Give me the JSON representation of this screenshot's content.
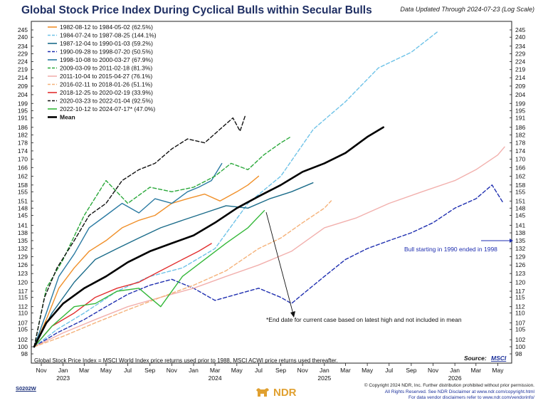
{
  "chart_data": {
    "type": "line",
    "title": "Global Stock Price Index During Cyclical Bulls within Secular Bulls",
    "subtitle": "Data Updated Through 2024-07-23 (Log Scale)",
    "y_scale": "log",
    "ylim": [
      98,
      248
    ],
    "y_ticks": [
      98,
      100,
      102,
      105,
      107,
      110,
      112,
      115,
      117,
      120,
      123,
      126,
      129,
      132,
      135,
      138,
      141,
      145,
      148,
      151,
      155,
      158,
      162,
      166,
      170,
      174,
      178,
      182,
      186,
      191,
      195,
      199,
      204,
      209,
      214,
      219,
      224,
      229,
      234,
      240,
      245
    ],
    "y_tick_labels": [
      "98",
      "100",
      "102",
      "105",
      "107",
      "110",
      "112",
      "115",
      "117",
      "120",
      "123",
      "126",
      "129",
      "132",
      "135",
      "138",
      "141",
      "145",
      "148",
      "151",
      "155",
      "158",
      "162",
      "166",
      "170",
      "174",
      "178",
      "182",
      "186",
      "191",
      "195",
      "199",
      "204",
      "209",
      "214",
      "219",
      "224",
      "229",
      "234",
      "240",
      "245"
    ],
    "x_range": [
      "2022-10-12",
      "2026-06-01"
    ],
    "x_ticks": [
      {
        "date": "2022-11-01",
        "label": "Nov"
      },
      {
        "date": "2023-01-01",
        "label": "Jan"
      },
      {
        "date": "2023-03-01",
        "label": "Mar"
      },
      {
        "date": "2023-05-01",
        "label": "May"
      },
      {
        "date": "2023-07-01",
        "label": "Jul"
      },
      {
        "date": "2023-09-01",
        "label": "Sep"
      },
      {
        "date": "2023-11-01",
        "label": "Nov"
      },
      {
        "date": "2024-01-01",
        "label": "Jan"
      },
      {
        "date": "2024-03-01",
        "label": "Mar"
      },
      {
        "date": "2024-05-01",
        "label": "May"
      },
      {
        "date": "2024-07-01",
        "label": "Jul"
      },
      {
        "date": "2024-09-01",
        "label": "Sep"
      },
      {
        "date": "2024-11-01",
        "label": "Nov"
      },
      {
        "date": "2025-01-01",
        "label": "Jan"
      },
      {
        "date": "2025-03-01",
        "label": "Mar"
      },
      {
        "date": "2025-05-01",
        "label": "May"
      },
      {
        "date": "2025-07-01",
        "label": "Jul"
      },
      {
        "date": "2025-09-01",
        "label": "Sep"
      },
      {
        "date": "2025-11-01",
        "label": "Nov"
      },
      {
        "date": "2026-01-01",
        "label": "Jan"
      },
      {
        "date": "2026-03-01",
        "label": "Mar"
      },
      {
        "date": "2026-05-01",
        "label": "May"
      }
    ],
    "year_labels": [
      {
        "date": "2023-01-01",
        "label": "2023"
      },
      {
        "date": "2024-03-01",
        "label": "2024"
      },
      {
        "date": "2025-01-01",
        "label": "2025"
      },
      {
        "date": "2026-01-01",
        "label": "2026"
      }
    ],
    "grid": false,
    "legend_position": "top-left",
    "series": [
      {
        "name": "1982-08-12 to 1984-05-02 (62.5%)",
        "color": "#f0902a",
        "dash": "solid",
        "x": [
          "2022-10-12",
          "2022-11-15",
          "2022-12-20",
          "2023-02-01",
          "2023-03-15",
          "2023-05-01",
          "2023-06-15",
          "2023-08-01",
          "2023-09-15",
          "2023-11-01",
          "2023-12-15",
          "2024-02-01",
          "2024-03-15",
          "2024-05-01",
          "2024-06-01",
          "2024-07-01"
        ],
        "y": [
          100,
          108,
          118,
          125,
          131,
          135,
          140,
          143,
          145,
          150,
          152,
          154,
          151,
          155,
          158,
          162
        ]
      },
      {
        "name": "1984-07-24 to 1987-08-25 (144.1%)",
        "color": "#6fc3e8",
        "dash": "dash",
        "x": [
          "2022-10-12",
          "2022-12-15",
          "2023-03-01",
          "2023-06-01",
          "2023-09-01",
          "2023-12-01",
          "2024-03-01",
          "2024-06-01",
          "2024-09-01",
          "2024-12-01",
          "2025-03-01",
          "2025-06-01",
          "2025-09-01",
          "2025-11-15"
        ],
        "y": [
          100,
          105,
          110,
          117,
          122,
          125,
          132,
          150,
          162,
          185,
          200,
          220,
          230,
          244
        ]
      },
      {
        "name": "1987-12-04 to 1990-01-03 (59.2%)",
        "color": "#1b6c8a",
        "dash": "solid",
        "x": [
          "2022-10-12",
          "2022-12-01",
          "2023-02-01",
          "2023-04-01",
          "2023-06-01",
          "2023-08-01",
          "2023-10-01",
          "2023-12-01",
          "2024-02-01",
          "2024-04-01",
          "2024-06-01",
          "2024-08-01",
          "2024-10-01",
          "2024-11-30"
        ],
        "y": [
          100,
          110,
          120,
          128,
          132,
          136,
          140,
          143,
          146,
          149,
          148,
          152,
          155,
          159
        ]
      },
      {
        "name": "1990-09-28 to 1998-07-20 (50.5%)",
        "color": "#1f2fb0",
        "dash": "dash",
        "x": [
          "2022-10-12",
          "2022-12-15",
          "2023-03-01",
          "2023-05-01",
          "2023-07-01",
          "2023-09-01",
          "2023-11-01",
          "2024-01-01",
          "2024-03-01",
          "2024-05-01",
          "2024-07-01",
          "2024-09-01",
          "2024-10-01",
          "2024-11-01",
          "2025-01-01",
          "2025-03-01",
          "2025-05-01",
          "2025-07-01",
          "2025-09-01",
          "2025-11-01",
          "2026-01-01",
          "2026-03-01",
          "2026-04-15",
          "2026-05-15"
        ],
        "y": [
          100,
          104,
          108,
          112,
          116,
          119,
          121,
          118,
          114,
          116,
          118,
          115,
          113,
          116,
          122,
          128,
          132,
          135,
          138,
          142,
          148,
          152,
          158,
          150.5
        ]
      },
      {
        "name": "1998-10-08 to 2000-03-27 (67.9%)",
        "color": "#2a7aa2",
        "dash": "solid",
        "x": [
          "2022-10-12",
          "2022-11-15",
          "2022-12-20",
          "2023-02-01",
          "2023-03-15",
          "2023-05-01",
          "2023-06-15",
          "2023-08-01",
          "2023-09-15",
          "2023-11-01",
          "2023-12-15",
          "2024-01-15",
          "2024-02-20",
          "2024-03-20"
        ],
        "y": [
          100,
          110,
          122,
          130,
          140,
          145,
          150,
          146,
          152,
          150,
          155,
          157,
          160,
          167.9
        ]
      },
      {
        "name": "2009-03-09 to 2011-02-18 (81.3%)",
        "color": "#2aa83a",
        "dash": "dash",
        "x": [
          "2022-10-12",
          "2022-11-15",
          "2023-01-01",
          "2023-03-01",
          "2023-05-01",
          "2023-07-01",
          "2023-09-01",
          "2023-11-01",
          "2024-01-01",
          "2024-03-01",
          "2024-04-15",
          "2024-06-01",
          "2024-07-15",
          "2024-09-01",
          "2024-10-01"
        ],
        "y": [
          100,
          118,
          128,
          145,
          160,
          150,
          157,
          155,
          157,
          162,
          168,
          165,
          172,
          178,
          181.3
        ]
      },
      {
        "name": "2011-10-04 to 2015-04-27 (76.1%)",
        "color": "#f2b0ad",
        "dash": "solid",
        "x": [
          "2022-10-12",
          "2023-01-01",
          "2023-04-01",
          "2023-07-01",
          "2023-10-01",
          "2024-01-01",
          "2024-04-01",
          "2024-07-01",
          "2024-10-01",
          "2025-01-01",
          "2025-04-01",
          "2025-07-01",
          "2025-10-01",
          "2026-01-01",
          "2026-03-01",
          "2026-05-01",
          "2026-05-20"
        ],
        "y": [
          100,
          104,
          108,
          112,
          115,
          118,
          122,
          126,
          131,
          140,
          144,
          150,
          155,
          160,
          165,
          172,
          176
        ]
      },
      {
        "name": "2016-02-11 to 2018-01-26 (51.1%)",
        "color": "#f5b27a",
        "dash": "dash",
        "x": [
          "2022-10-12",
          "2023-01-01",
          "2023-04-01",
          "2023-07-01",
          "2023-10-01",
          "2024-01-01",
          "2024-04-01",
          "2024-07-01",
          "2024-09-01",
          "2024-11-01",
          "2025-01-01",
          "2025-01-20"
        ],
        "y": [
          100,
          103,
          107,
          111,
          115,
          119,
          124,
          132,
          136,
          142,
          148,
          151.1
        ]
      },
      {
        "name": "2018-12-25 to 2020-02-19 (33.9%)",
        "color": "#e23030",
        "dash": "solid",
        "x": [
          "2022-10-12",
          "2022-12-01",
          "2023-02-01",
          "2023-04-01",
          "2023-06-01",
          "2023-08-01",
          "2023-10-01",
          "2023-12-01",
          "2024-01-15",
          "2024-02-20"
        ],
        "y": [
          100,
          106,
          110,
          115,
          118,
          120,
          124,
          128,
          131,
          133.9
        ]
      },
      {
        "name": "2020-03-23 to 2022-01-04 (92.5%)",
        "color": "#111111",
        "dash": "dash",
        "x": [
          "2022-10-12",
          "2022-11-10",
          "2022-12-15",
          "2023-02-01",
          "2023-03-15",
          "2023-05-01",
          "2023-06-15",
          "2023-08-01",
          "2023-09-15",
          "2023-11-01",
          "2023-12-15",
          "2024-02-01",
          "2024-03-15",
          "2024-04-20",
          "2024-05-10",
          "2024-05-25"
        ],
        "y": [
          100,
          115,
          125,
          135,
          145,
          150,
          160,
          165,
          168,
          175,
          180,
          178,
          185,
          191,
          184,
          192.5
        ]
      },
      {
        "name": "2022-10-12 to 2024-07-17* (47.0%)",
        "color": "#35b83a",
        "dash": "solid",
        "x": [
          "2022-10-12",
          "2022-12-01",
          "2023-02-01",
          "2023-04-01",
          "2023-06-01",
          "2023-08-01",
          "2023-10-01",
          "2023-12-01",
          "2024-02-01",
          "2024-04-01",
          "2024-06-01",
          "2024-07-17"
        ],
        "y": [
          100,
          106,
          112,
          113,
          117,
          118,
          112,
          122,
          128,
          134,
          140,
          147
        ]
      },
      {
        "name": "Mean",
        "color": "#000000",
        "dash": "solid",
        "bold": true,
        "x": [
          "2022-10-12",
          "2022-11-15",
          "2023-01-01",
          "2023-03-01",
          "2023-05-01",
          "2023-07-01",
          "2023-09-01",
          "2023-11-01",
          "2024-01-01",
          "2024-03-01",
          "2024-05-01",
          "2024-07-01",
          "2024-09-01",
          "2024-11-01",
          "2025-01-01",
          "2025-03-01",
          "2025-05-01",
          "2025-06-15"
        ],
        "y": [
          100,
          107,
          113,
          118,
          122,
          127,
          131,
          134,
          137,
          142,
          148,
          153,
          158,
          164,
          168,
          173,
          181,
          186
        ]
      }
    ],
    "annotations": [
      {
        "text": "Bull starting in 1990 ended in 1998",
        "color": "#1f2fb0"
      },
      {
        "text": "*End date for current case based on latest high and not included in mean",
        "color": "#111111"
      },
      {
        "text": "Global Stock Price Index = MSCI World Index price returns used prior to 1988, MSCI ACWI price returns used thereafter.",
        "color": "#111111"
      }
    ],
    "source": {
      "label": "Source:",
      "value": "MSCI"
    }
  },
  "footer": {
    "code": "S0202W",
    "logo_text": "NDR",
    "copyright_lines": [
      "© Copyright 2024 NDR, Inc. Further distribution prohibited without prior permission.",
      "All Rights Reserved. See NDR Disclaimer at www.ndr.com/copyright.html",
      "For data vendor disclaimers refer to www.ndr.com/vendorinfo/"
    ]
  },
  "colors": {
    "title": "#1f2f63",
    "link": "#1a2f9a",
    "logo": "#e0a030"
  }
}
